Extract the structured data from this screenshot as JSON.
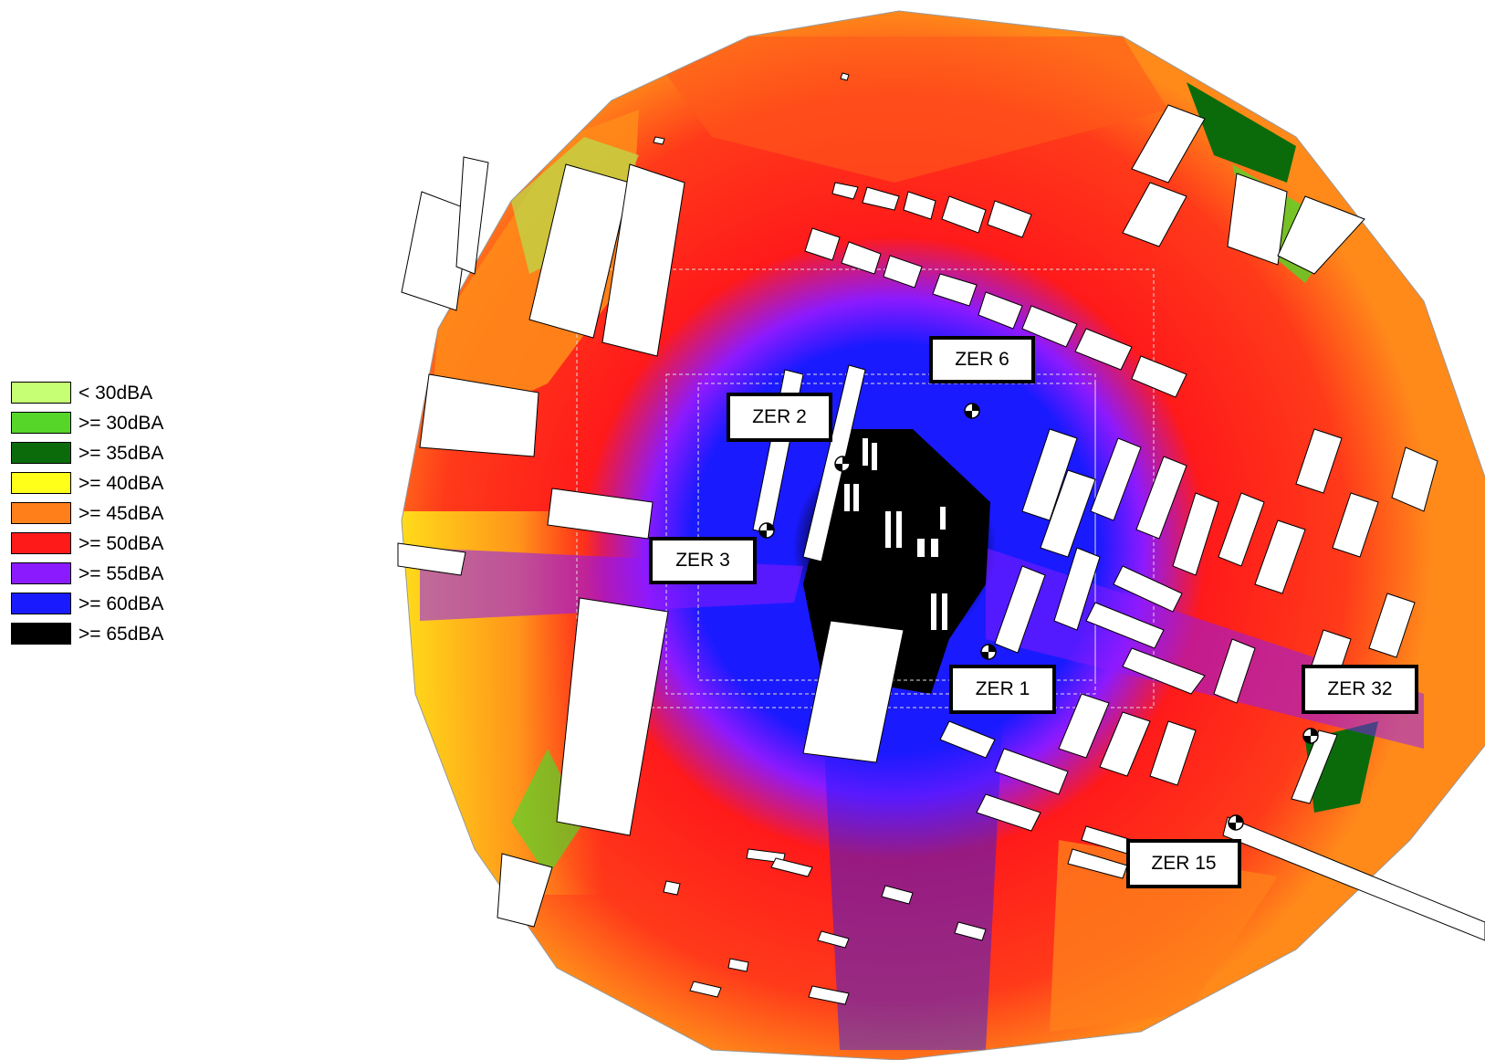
{
  "legend": [
    {
      "label": "< 30dBA",
      "color": "#c6ff73"
    },
    {
      "label": ">= 30dBA",
      "color": "#55d629"
    },
    {
      "label": ">= 35dBA",
      "color": "#0b6b0b"
    },
    {
      "label": ">= 40dBA",
      "color": "#ffff1a"
    },
    {
      "label": ">= 45dBA",
      "color": "#ff7f1a"
    },
    {
      "label": ">= 50dBA",
      "color": "#ff1a1a"
    },
    {
      "label": ">= 55dBA",
      "color": "#8c1aff"
    },
    {
      "label": ">= 60dBA",
      "color": "#1a1aff"
    },
    {
      "label": ">= 65dBA",
      "color": "#000000"
    }
  ],
  "receptors": [
    {
      "label": "ZER 6"
    },
    {
      "label": "ZER 2"
    },
    {
      "label": "ZER 3"
    },
    {
      "label": "ZER 1"
    },
    {
      "label": "ZER 32"
    },
    {
      "label": "ZER 15"
    }
  ]
}
